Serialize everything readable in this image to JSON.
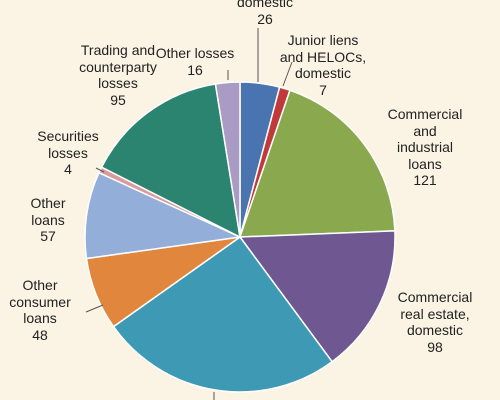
{
  "chart_data": {
    "type": "pie",
    "categories": [
      "domestic",
      "Junior liens\nand HELOCs,\ndomestic",
      "Commercial and\nindustrial loans",
      "Commercial\nreal estate,\ndomestic",
      null,
      "Other\nconsumer\nloans",
      "Other\nloans",
      "Securities\nlosses",
      "Trading and\ncounterparty\nlosses",
      "Other losses"
    ],
    "values": [
      26,
      7,
      121,
      98,
      160,
      48,
      57,
      4,
      95,
      16
    ],
    "colors": [
      "#4a74b0",
      "#c0393b",
      "#8aa94e",
      "#6f5792",
      "#3e9ab4",
      "#e0873d",
      "#93aed8",
      "#d99a9a",
      "#2b8470",
      "#a99bc4"
    ]
  }
}
